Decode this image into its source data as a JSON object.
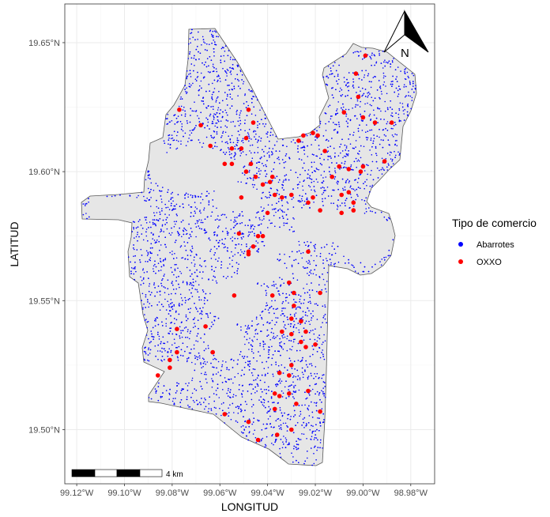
{
  "chart_data": {
    "type": "scatter",
    "xlabel": "LONGITUD",
    "ylabel": "LATITUD",
    "xlim": [
      -99.125,
      -98.97
    ],
    "ylim": [
      19.479,
      19.665
    ],
    "x_ticks": [
      {
        "value": -99.12,
        "label": "99.12°W"
      },
      {
        "value": -99.1,
        "label": "99.10°W"
      },
      {
        "value": -99.08,
        "label": "99.08°W"
      },
      {
        "value": -99.06,
        "label": "99.06°W"
      },
      {
        "value": -99.04,
        "label": "99.04°W"
      },
      {
        "value": -99.02,
        "label": "99.02°W"
      },
      {
        "value": -99.0,
        "label": "99.00°W"
      },
      {
        "value": -98.98,
        "label": "98.98°W"
      }
    ],
    "y_ticks": [
      {
        "value": 19.5,
        "label": "19.50°N"
      },
      {
        "value": 19.55,
        "label": "19.55°N"
      },
      {
        "value": 19.6,
        "label": "19.60°N"
      },
      {
        "value": 19.65,
        "label": "19.65°N"
      }
    ],
    "grid": true,
    "legend_position": "right",
    "legend_title": "Tipo de comercio",
    "series": [
      {
        "name": "Abarrotes",
        "color": "#0000ff"
      },
      {
        "name": "OXXO",
        "color": "#ff0000",
        "points": [
          [
            -99.077,
            19.624
          ],
          [
            -99.068,
            19.618
          ],
          [
            -99.048,
            19.624
          ],
          [
            -99.046,
            19.619
          ],
          [
            -99.049,
            19.613
          ],
          [
            -99.055,
            19.609
          ],
          [
            -99.051,
            19.609
          ],
          [
            -99.055,
            19.603
          ],
          [
            -99.049,
            19.6
          ],
          [
            -99.045,
            19.598
          ],
          [
            -99.038,
            19.598
          ],
          [
            -99.042,
            19.595
          ],
          [
            -99.037,
            19.591
          ],
          [
            -99.03,
            19.591
          ],
          [
            -99.034,
            19.59
          ],
          [
            -99.04,
            19.584
          ],
          [
            -99.051,
            19.59
          ],
          [
            -99.044,
            19.575
          ],
          [
            -99.048,
            19.568
          ],
          [
            -99.046,
            19.571
          ],
          [
            -99.052,
            19.576
          ],
          [
            -99.042,
            19.575
          ],
          [
            -99.025,
            19.614
          ],
          [
            -99.021,
            19.615
          ],
          [
            -99.019,
            19.614
          ],
          [
            -99.016,
            19.608
          ],
          [
            -99.027,
            19.612
          ],
          [
            -99.008,
            19.623
          ],
          [
            -99.003,
            19.638
          ],
          [
            -99.002,
            19.629
          ],
          [
            -99.0,
            19.621
          ],
          [
            -98.995,
            19.619
          ],
          [
            -98.988,
            19.619
          ],
          [
            -98.991,
            19.604
          ],
          [
            -99.01,
            19.602
          ],
          [
            -99.006,
            19.601
          ],
          [
            -99.001,
            19.6
          ],
          [
            -99.013,
            19.598
          ],
          [
            -99.021,
            19.59
          ],
          [
            -99.009,
            19.591
          ],
          [
            -99.023,
            19.588
          ],
          [
            -99.018,
            19.585
          ],
          [
            -99.009,
            19.584
          ],
          [
            -99.004,
            19.585
          ],
          [
            -99.006,
            19.592
          ],
          [
            -99.004,
            19.588
          ],
          [
            -99.0,
            19.602
          ],
          [
            -98.999,
            19.645
          ],
          [
            -99.047,
            19.603
          ],
          [
            -99.039,
            19.596
          ],
          [
            -99.023,
            19.569
          ],
          [
            -99.018,
            19.553
          ],
          [
            -99.031,
            19.557
          ],
          [
            -99.029,
            19.553
          ],
          [
            -99.038,
            19.552
          ],
          [
            -99.029,
            19.548
          ],
          [
            -99.03,
            19.543
          ],
          [
            -99.024,
            19.538
          ],
          [
            -99.026,
            19.542
          ],
          [
            -99.03,
            19.537
          ],
          [
            -99.026,
            19.534
          ],
          [
            -99.024,
            19.532
          ],
          [
            -99.02,
            19.533
          ],
          [
            -99.034,
            19.538
          ],
          [
            -99.03,
            19.525
          ],
          [
            -99.031,
            19.521
          ],
          [
            -99.035,
            19.522
          ],
          [
            -99.031,
            19.514
          ],
          [
            -99.035,
            19.513
          ],
          [
            -99.037,
            19.514
          ],
          [
            -99.023,
            19.515
          ],
          [
            -99.018,
            19.507
          ],
          [
            -99.028,
            19.51
          ],
          [
            -99.03,
            19.5
          ],
          [
            -99.036,
            19.498
          ],
          [
            -99.044,
            19.496
          ],
          [
            -99.048,
            19.503
          ],
          [
            -99.037,
            19.508
          ],
          [
            -99.058,
            19.506
          ],
          [
            -99.054,
            19.552
          ],
          [
            -99.063,
            19.53
          ],
          [
            -99.066,
            19.54
          ],
          [
            -99.078,
            19.539
          ],
          [
            -99.078,
            19.53
          ],
          [
            -99.081,
            19.527
          ],
          [
            -99.081,
            19.524
          ],
          [
            -99.086,
            19.521
          ],
          [
            -99.058,
            19.603
          ],
          [
            -99.064,
            19.61
          ],
          [
            -99.048,
            19.569
          ]
        ]
      }
    ]
  },
  "scale_bar": {
    "label": "4 km"
  },
  "north_arrow": {
    "label": "N"
  },
  "colors": {
    "polygon_fill": "#e6e6e6",
    "polygon_stroke": "#595959",
    "abarrotes": "#0000ff",
    "oxxo": "#ff0000",
    "grid": "#ebebeb",
    "panel_border": "#333333"
  }
}
